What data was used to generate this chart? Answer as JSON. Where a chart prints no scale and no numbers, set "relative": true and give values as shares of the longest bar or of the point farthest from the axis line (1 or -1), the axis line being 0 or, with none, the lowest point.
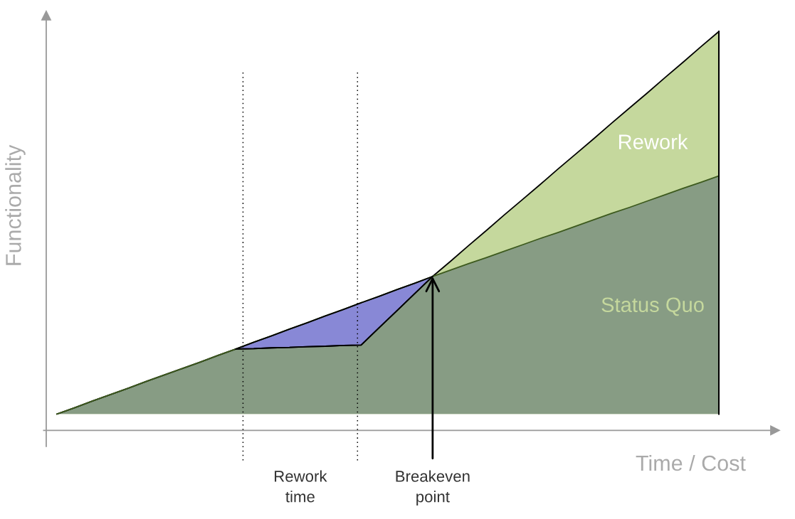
{
  "chart_data": {
    "type": "area",
    "relative": true,
    "xlabel": "Time / Cost",
    "ylabel": "Functionality",
    "categories": [
      null,
      null,
      null,
      null,
      null,
      null,
      null,
      null,
      null,
      null,
      null,
      null,
      null,
      null,
      null,
      null,
      null,
      null,
      null,
      null,
      null,
      null,
      null,
      null,
      null,
      null,
      null,
      null,
      null,
      null,
      null,
      null,
      null,
      null,
      null,
      null,
      null,
      null
    ],
    "series": [
      {
        "name": "Rework",
        "color": "#c5d89d",
        "values": [
          0.041,
          0.057,
          0.074,
          0.09,
          0.106,
          0.123,
          0.139,
          0.155,
          0.171,
          0.188,
          0.204,
          0.205,
          0.207,
          0.208,
          0.21,
          0.211,
          0.213,
          0.214,
          0.257,
          0.3,
          0.343,
          0.386,
          0.424,
          0.463,
          0.501,
          0.54,
          0.578,
          0.616,
          0.655,
          0.693,
          0.731,
          0.77,
          0.808,
          0.846,
          0.885,
          0.923,
          0.962,
          1.0
        ]
      },
      {
        "name": "Status Quo",
        "color": "#879c84",
        "values": [
          0.041,
          0.057,
          0.074,
          0.09,
          0.106,
          0.123,
          0.139,
          0.155,
          0.171,
          0.188,
          0.204,
          0.221,
          0.237,
          0.254,
          0.27,
          0.287,
          0.303,
          0.32,
          0.336,
          0.353,
          0.369,
          0.386,
          0.402,
          0.418,
          0.433,
          0.449,
          0.465,
          0.481,
          0.496,
          0.512,
          0.528,
          0.544,
          0.559,
          0.575,
          0.591,
          0.607,
          0.622,
          0.638
        ]
      },
      {
        "color": "#8888d6",
        "values": [
          null,
          null,
          null,
          null,
          null,
          null,
          null,
          null,
          null,
          null,
          0.204,
          0.221,
          0.237,
          0.254,
          0.27,
          0.287,
          0.303,
          0.32,
          0.336,
          0.353,
          0.369,
          0.386,
          null,
          null,
          null,
          null,
          null,
          null,
          null,
          null,
          null,
          null,
          null,
          null,
          null,
          null,
          null,
          null
        ]
      }
    ],
    "annotations": [
      "Rework time",
      {
        "text": "Breakeven point",
        "y": 0.386
      }
    ]
  }
}
